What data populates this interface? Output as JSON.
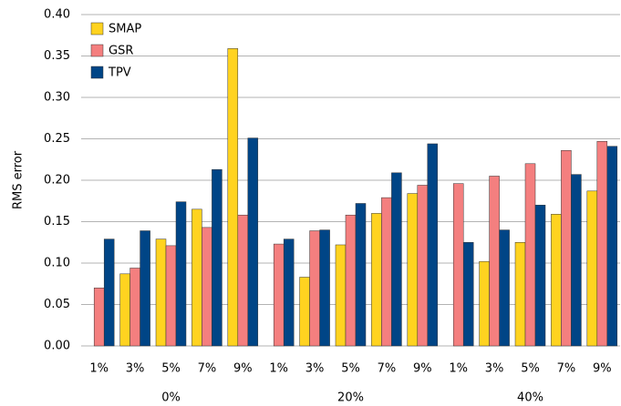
{
  "chart_data": {
    "type": "bar",
    "y_label": "RMS error",
    "categories": [
      "1%",
      "3%",
      "5%",
      "7%",
      "9%",
      "1%",
      "3%",
      "5%",
      "7%",
      "9%",
      "1%",
      "3%",
      "5%",
      "7%",
      "9%"
    ],
    "groups": [
      "0%",
      "20%",
      "40%"
    ],
    "series": [
      {
        "name": "SMAP",
        "color": "#ffd320",
        "values": [
          null,
          0.087,
          0.129,
          0.165,
          0.359,
          null,
          0.083,
          0.122,
          0.16,
          0.184,
          null,
          0.102,
          0.125,
          0.159,
          0.187
        ]
      },
      {
        "name": "GSR",
        "color": "#f47f7f",
        "values": [
          0.07,
          0.094,
          0.121,
          0.143,
          0.158,
          0.123,
          0.139,
          0.158,
          0.179,
          0.194,
          0.196,
          0.205,
          0.22,
          0.236,
          0.247
        ]
      },
      {
        "name": "TPV",
        "color": "#004586",
        "values": [
          0.129,
          0.139,
          0.174,
          0.213,
          0.251,
          0.129,
          0.14,
          0.172,
          0.209,
          0.244,
          0.125,
          0.14,
          0.17,
          0.207,
          0.241
        ]
      }
    ],
    "ylim": [
      0,
      0.4
    ],
    "yticks": [
      {
        "value": 0,
        "label": "0.00"
      },
      {
        "value": 0.05,
        "label": "0.05"
      },
      {
        "value": 0.1,
        "label": "0.10"
      },
      {
        "value": 0.15,
        "label": "0.15"
      },
      {
        "value": 0.2,
        "label": "0.20"
      },
      {
        "value": 0.25,
        "label": "0.25"
      },
      {
        "value": 0.3,
        "label": "0.30"
      },
      {
        "value": 0.35,
        "label": "0.35"
      },
      {
        "value": 0.4,
        "label": "0.40"
      }
    ],
    "grid": true,
    "legend": "top-left"
  }
}
